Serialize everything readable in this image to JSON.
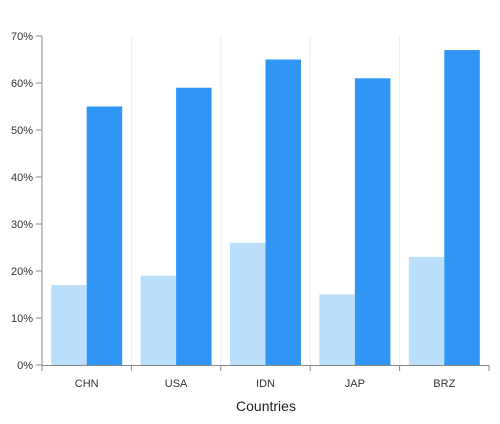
{
  "chart_data": {
    "type": "bar",
    "categories": [
      "CHN",
      "USA",
      "IDN",
      "JAP",
      "BRZ"
    ],
    "series": [
      {
        "values": [
          17,
          19,
          26,
          15,
          23
        ],
        "color": "#bbdefb"
      },
      {
        "values": [
          55,
          59,
          65,
          61,
          67
        ],
        "color": "#2f96f6"
      }
    ],
    "xlabel": "Countries",
    "ylabel": "",
    "ylim": [
      0,
      70
    ],
    "y_ticks": [
      0,
      10,
      20,
      30,
      40,
      50,
      60,
      70
    ],
    "y_tick_labels": [
      "0%",
      "10%",
      "20%",
      "30%",
      "40%",
      "50%",
      "60%",
      "70%"
    ],
    "grid": {
      "vertical_category_separators": true,
      "horizontal": false
    },
    "legend": "none"
  }
}
